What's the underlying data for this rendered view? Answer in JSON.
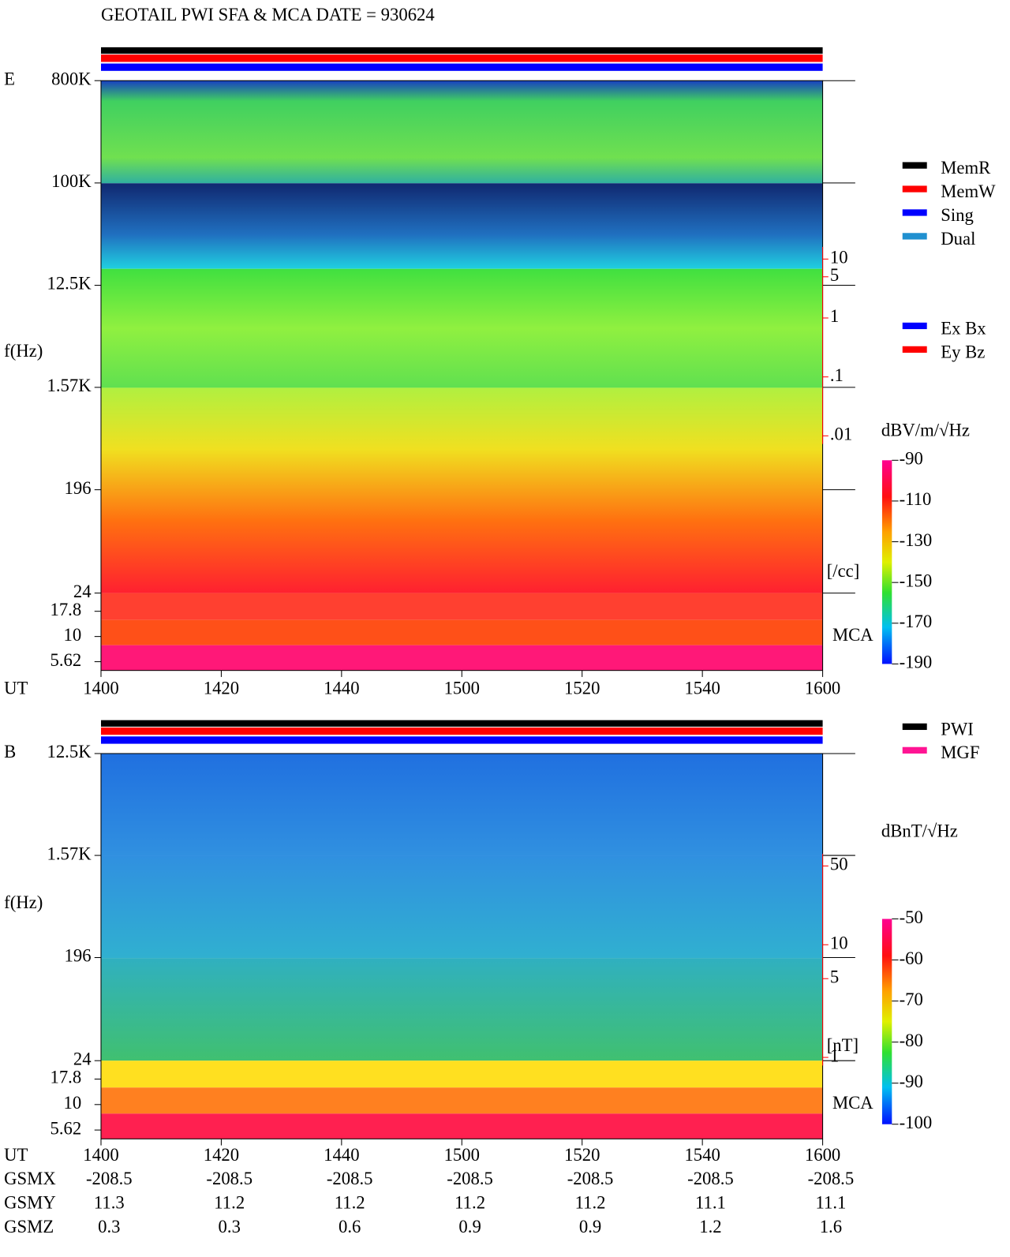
{
  "title": "GEOTAIL  PWI SFA & MCA   DATE = 930624",
  "chart_data": [
    {
      "type": "spectrogram",
      "panel_label": "E",
      "y_label": "f(Hz)",
      "x_label": "UT",
      "categories": [
        "1400",
        "1420",
        "1440",
        "1500",
        "1520",
        "1540",
        "1600"
      ],
      "log_y": true,
      "ylim": [
        24,
        800000
      ],
      "yticks": [
        {
          "value": 800000,
          "label": "800K"
        },
        {
          "value": 100000,
          "label": "100K"
        },
        {
          "value": 12500,
          "label": "12.5K"
        },
        {
          "value": 1570,
          "label": "1.57K"
        },
        196,
        24
      ],
      "mca_label": "MCA",
      "mca_ylim": [
        4.6,
        27
      ],
      "mca_ticks": [
        17.8,
        10,
        5.62
      ],
      "density_label": "[/cc]",
      "density_lim": [
        0.01,
        10
      ],
      "density_ticks": [
        10,
        5,
        1,
        {
          "value": 0.1,
          "label": ".1"
        },
        {
          "value": 0.01,
          "label": ".01"
        }
      ],
      "colorbar": {
        "label": "dBV/m/√Hz",
        "lim": [
          -190,
          -90
        ],
        "ticks": [
          -90,
          -110,
          -130,
          -150,
          -170,
          -190
        ]
      },
      "legend": [
        {
          "name": "MemR",
          "color": "#000000"
        },
        {
          "name": "MemW",
          "color": "#ff0000"
        },
        {
          "name": "Sing",
          "color": "#0000ff"
        },
        {
          "name": "Dual",
          "color": "#2090d0"
        }
      ],
      "legend2": [
        {
          "name": "Ex Bx",
          "color": "#0000ff"
        },
        {
          "name": "Ey Bz",
          "color": "#ff0000"
        }
      ]
    },
    {
      "type": "spectrogram",
      "panel_label": "B",
      "y_label": "f(Hz)",
      "x_label": "UT",
      "categories": [
        "1400",
        "1420",
        "1440",
        "1500",
        "1520",
        "1540",
        "1600"
      ],
      "log_y": true,
      "ylim": [
        24,
        12500
      ],
      "yticks": [
        {
          "value": 12500,
          "label": "12.5K"
        },
        {
          "value": 1570,
          "label": "1.57K"
        },
        196,
        24
      ],
      "mca_label": "MCA",
      "mca_ylim": [
        4.6,
        27
      ],
      "mca_ticks": [
        17.8,
        10,
        5.62
      ],
      "density_label": "[nT]",
      "density_lim": [
        1,
        50
      ],
      "density_ticks": [
        50,
        10,
        5,
        1
      ],
      "colorbar": {
        "label": "dBnT/√Hz",
        "lim": [
          -100,
          -50
        ],
        "ticks": [
          -50,
          -60,
          -70,
          -80,
          -90,
          -100
        ]
      },
      "legend": [
        {
          "name": "PWI",
          "color": "#000000"
        },
        {
          "name": "MGF",
          "color": "#ff1493"
        }
      ]
    }
  ],
  "ephemeris": {
    "rows": [
      {
        "name": "GSMX",
        "values": [
          -208.5,
          -208.5,
          -208.5,
          -208.5,
          -208.5,
          -208.5,
          -208.5
        ]
      },
      {
        "name": "GSMY",
        "values": [
          11.3,
          11.2,
          11.2,
          11.2,
          11.2,
          11.1,
          11.1
        ]
      },
      {
        "name": "GSMZ",
        "values": [
          0.3,
          0.3,
          0.6,
          0.9,
          0.9,
          1.2,
          1.6
        ]
      }
    ]
  }
}
